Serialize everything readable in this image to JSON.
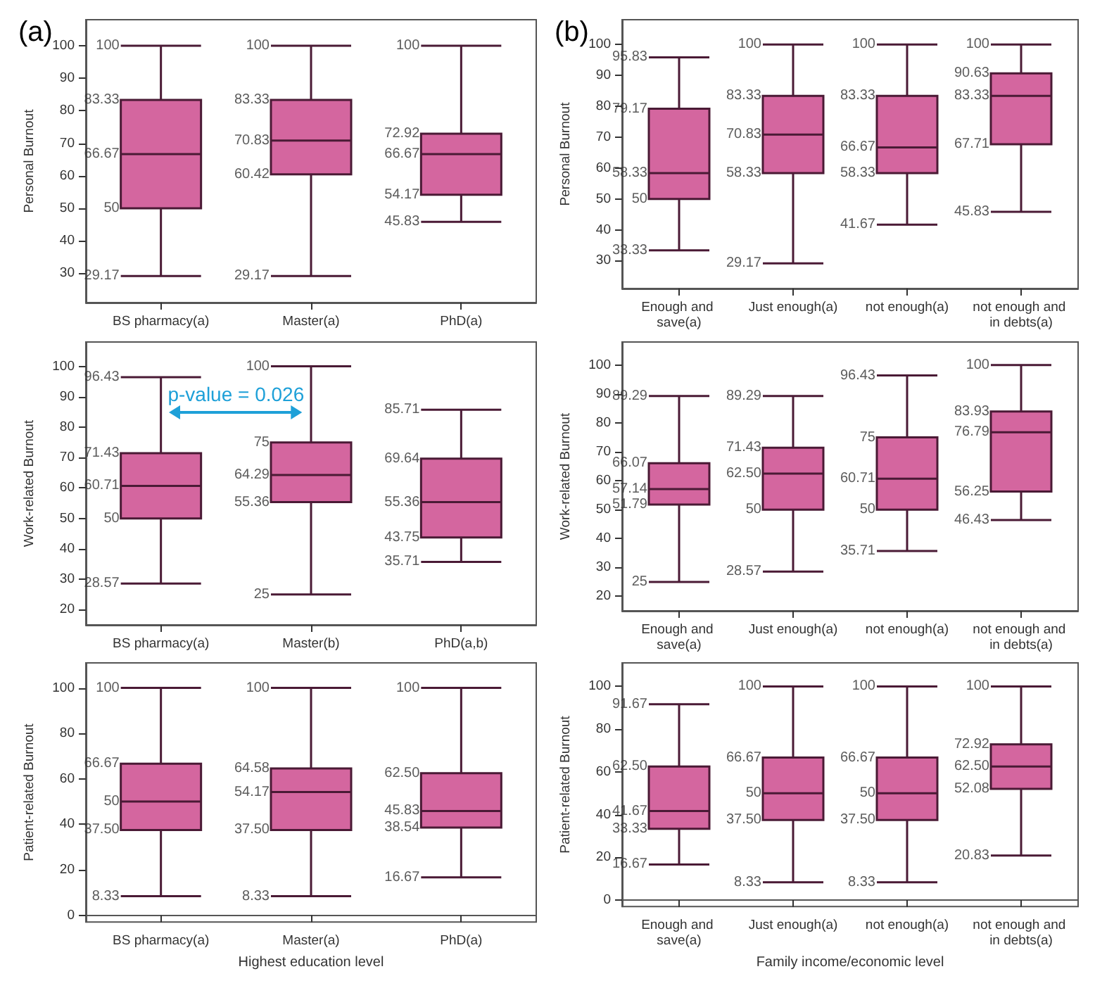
{
  "chart_data": [
    {
      "type": "box",
      "title": "(a)",
      "ylabel": "Personal Burnout",
      "categories": [
        "BS pharmacy(a)",
        "Master(a)",
        "PhD(a)"
      ],
      "color": "#d4669f",
      "ylim": [
        21,
        108
      ],
      "yticks": [
        30,
        40,
        50,
        60,
        70,
        80,
        90,
        100
      ],
      "boxes": [
        {
          "low": 29.17,
          "q1": 50,
          "median": 66.67,
          "q3": 83.33,
          "high": 100
        },
        {
          "low": 29.17,
          "q1": 60.42,
          "median": 70.83,
          "q3": 83.33,
          "high": 100
        },
        {
          "low": 45.83,
          "q1": 54.17,
          "median": 66.67,
          "q3": 72.92,
          "high": 100
        }
      ],
      "annotations": [
        {
          "text": "29.17",
          "x": "BS pharmacy(a)",
          "y": 29.17
        },
        {
          "text": "50",
          "x": "BS pharmacy(a)",
          "y": 50
        },
        {
          "text": "66.67",
          "x": "BS pharmacy(a)",
          "y": 66.67
        },
        {
          "text": "83.33",
          "x": "BS pharmacy(a)",
          "y": 83.33
        },
        {
          "text": "100",
          "x": "BS pharmacy(a)",
          "y": 100
        },
        {
          "text": "29.17",
          "x": "Master(a)",
          "y": 29.17
        },
        {
          "text": "60.42",
          "x": "Master(a)",
          "y": 60.42
        },
        {
          "text": "70.83",
          "x": "Master(a)",
          "y": 70.83
        },
        {
          "text": "83.33",
          "x": "Master(a)",
          "y": 83.33
        },
        {
          "text": "100",
          "x": "Master(a)",
          "y": 100
        },
        {
          "text": "45.83",
          "x": "PhD(a)",
          "y": 45.83
        },
        {
          "text": "54.17",
          "x": "PhD(a)",
          "y": 54.17
        },
        {
          "text": "66.67",
          "x": "PhD(a)",
          "y": 66.67
        },
        {
          "text": "72.92",
          "x": "PhD(a)",
          "y": 72.92
        },
        {
          "text": "100",
          "x": "PhD(a)",
          "y": 100
        }
      ]
    },
    {
      "type": "box",
      "title": "(b)",
      "ylabel": "Personal Burnout",
      "categories": [
        "Enough and save(a)",
        "Just enough(a)",
        "not enough(a)",
        "not enough and in debts(a)"
      ],
      "color": "#d4669f",
      "ylim": [
        21,
        108
      ],
      "yticks": [
        30,
        40,
        50,
        60,
        70,
        80,
        90,
        100
      ],
      "boxes": [
        {
          "low": 33.33,
          "q1": 50,
          "median": 58.33,
          "q3": 79.17,
          "high": 95.83
        },
        {
          "low": 29.17,
          "q1": 58.33,
          "median": 70.83,
          "q3": 83.33,
          "high": 100
        },
        {
          "low": 41.67,
          "q1": 58.33,
          "median": 66.67,
          "q3": 83.33,
          "high": 100
        },
        {
          "low": 45.83,
          "q1": 67.71,
          "median": 83.33,
          "q3": 90.63,
          "high": 100
        }
      ],
      "annotations": [
        {
          "text": "33.33",
          "x": "Enough and save(a)",
          "y": 33.33
        },
        {
          "text": "50",
          "x": "Enough and save(a)",
          "y": 50
        },
        {
          "text": "58.33",
          "x": "Enough and save(a)",
          "y": 58.33
        },
        {
          "text": "79.17",
          "x": "Enough and save(a)",
          "y": 79.17
        },
        {
          "text": "95.83",
          "x": "Enough and save(a)",
          "y": 95.83
        },
        {
          "text": "29.17",
          "x": "Just enough(a)",
          "y": 29.17
        },
        {
          "text": "58.33",
          "x": "Just enough(a)",
          "y": 58.33
        },
        {
          "text": "70.83",
          "x": "Just enough(a)",
          "y": 70.83
        },
        {
          "text": "83.33",
          "x": "Just enough(a)",
          "y": 83.33
        },
        {
          "text": "100",
          "x": "Just enough(a)",
          "y": 100
        },
        {
          "text": "41.67",
          "x": "not enough(a)",
          "y": 41.67
        },
        {
          "text": "58.33",
          "x": "not enough(a)",
          "y": 58.33
        },
        {
          "text": "66.67",
          "x": "not enough(a)",
          "y": 66.67
        },
        {
          "text": "83.33",
          "x": "not enough(a)",
          "y": 83.33
        },
        {
          "text": "100",
          "x": "not enough(a)",
          "y": 100
        },
        {
          "text": "45.83",
          "x": "not enough and in debts(a)",
          "y": 45.83
        },
        {
          "text": "67.71",
          "x": "not enough and in debts(a)",
          "y": 67.71
        },
        {
          "text": "83.33",
          "x": "not enough and in debts(a)",
          "y": 83.33
        },
        {
          "text": "90.63",
          "x": "not enough and in debts(a)",
          "y": 90.63
        },
        {
          "text": "100",
          "x": "not enough and in debts(a)",
          "y": 100
        }
      ]
    },
    {
      "type": "box",
      "ylabel": "Work-related Burnout",
      "categories": [
        "BS pharmacy(a)",
        "Master(b)",
        "PhD(a,b)"
      ],
      "color": "#d4669f",
      "ylim": [
        15,
        108
      ],
      "yticks": [
        20,
        30,
        40,
        50,
        60,
        70,
        80,
        90,
        100
      ],
      "boxes": [
        {
          "low": 28.57,
          "q1": 50,
          "median": 60.71,
          "q3": 71.43,
          "high": 96.43
        },
        {
          "low": 25,
          "q1": 55.36,
          "median": 64.29,
          "q3": 75,
          "high": 100
        },
        {
          "low": 35.71,
          "q1": 43.75,
          "median": 55.36,
          "q3": 69.64,
          "high": 85.71
        }
      ],
      "annotations": [
        "p-value = 0.026",
        {
          "text": "28.57",
          "x": "BS pharmacy(a)",
          "y": 28.57
        },
        {
          "text": "50",
          "x": "BS pharmacy(a)",
          "y": 50
        },
        {
          "text": "60.71",
          "x": "BS pharmacy(a)",
          "y": 60.71
        },
        {
          "text": "71.43",
          "x": "BS pharmacy(a)",
          "y": 71.43
        },
        {
          "text": "96.43",
          "x": "BS pharmacy(a)",
          "y": 96.43
        },
        {
          "text": "25",
          "x": "Master(b)",
          "y": 25
        },
        {
          "text": "55.36",
          "x": "Master(b)",
          "y": 55.36
        },
        {
          "text": "64.29",
          "x": "Master(b)",
          "y": 64.29
        },
        {
          "text": "75",
          "x": "Master(b)",
          "y": 75
        },
        {
          "text": "100",
          "x": "Master(b)",
          "y": 100
        },
        {
          "text": "35.71",
          "x": "PhD(a,b)",
          "y": 35.71
        },
        {
          "text": "43.75",
          "x": "PhD(a,b)",
          "y": 43.75
        },
        {
          "text": "55.36",
          "x": "PhD(a,b)",
          "y": 55.36
        },
        {
          "text": "69.64",
          "x": "PhD(a,b)",
          "y": 69.64
        },
        {
          "text": "85.71",
          "x": "PhD(a,b)",
          "y": 85.71
        }
      ]
    },
    {
      "type": "box",
      "ylabel": "Work-related Burnout",
      "categories": [
        "Enough and save(a)",
        "Just enough(a)",
        "not enough(a)",
        "not enough and in debts(a)"
      ],
      "color": "#d4669f",
      "ylim": [
        15,
        108
      ],
      "yticks": [
        20,
        30,
        40,
        50,
        60,
        70,
        80,
        90,
        100
      ],
      "boxes": [
        {
          "low": 25,
          "q1": 51.79,
          "median": 57.14,
          "q3": 66.07,
          "high": 89.29
        },
        {
          "low": 28.57,
          "q1": 50,
          "median": 62.5,
          "q3": 71.43,
          "high": 89.29
        },
        {
          "low": 35.71,
          "q1": 50,
          "median": 60.71,
          "q3": 75,
          "high": 96.43
        },
        {
          "low": 46.43,
          "q1": 56.25,
          "median": 76.79,
          "q3": 83.93,
          "high": 100
        }
      ],
      "annotations": [
        {
          "text": "25",
          "x": "Enough and save(a)",
          "y": 25
        },
        {
          "text": "51.79",
          "x": "Enough and save(a)",
          "y": 51.79
        },
        {
          "text": "57.14",
          "x": "Enough and save(a)",
          "y": 57.14
        },
        {
          "text": "66.07",
          "x": "Enough and save(a)",
          "y": 66.07
        },
        {
          "text": "89.29",
          "x": "Enough and save(a)",
          "y": 89.29
        },
        {
          "text": "28.57",
          "x": "Just enough(a)",
          "y": 28.57
        },
        {
          "text": "50",
          "x": "Just enough(a)",
          "y": 50
        },
        {
          "text": "62.50",
          "x": "Just enough(a)",
          "y": 62.5
        },
        {
          "text": "71.43",
          "x": "Just enough(a)",
          "y": 71.43
        },
        {
          "text": "89.29",
          "x": "Just enough(a)",
          "y": 89.29
        },
        {
          "text": "35.71",
          "x": "not enough(a)",
          "y": 35.71
        },
        {
          "text": "50",
          "x": "not enough(a)",
          "y": 50
        },
        {
          "text": "60.71",
          "x": "not enough(a)",
          "y": 60.71
        },
        {
          "text": "75",
          "x": "not enough(a)",
          "y": 75
        },
        {
          "text": "96.43",
          "x": "not enough(a)",
          "y": 96.43
        },
        {
          "text": "46.43",
          "x": "not enough and in debts(a)",
          "y": 46.43
        },
        {
          "text": "56.25",
          "x": "not enough and in debts(a)",
          "y": 56.25
        },
        {
          "text": "76.79",
          "x": "not enough and in debts(a)",
          "y": 76.79
        },
        {
          "text": "83.93",
          "x": "not enough and in debts(a)",
          "y": 83.93
        },
        {
          "text": "100",
          "x": "not enough and in debts(a)",
          "y": 100
        }
      ]
    },
    {
      "type": "box",
      "ylabel": "Patient-related Burnout",
      "xlabel": "Highest education level",
      "categories": [
        "BS pharmacy(a)",
        "Master(a)",
        "PhD(a)"
      ],
      "color": "#d4669f",
      "ylim": [
        -3,
        111
      ],
      "yticks": [
        0,
        20,
        40,
        60,
        80,
        100
      ],
      "boxes": [
        {
          "low": 8.33,
          "q1": 37.5,
          "median": 50,
          "q3": 66.67,
          "high": 100
        },
        {
          "low": 8.33,
          "q1": 37.5,
          "median": 54.17,
          "q3": 64.58,
          "high": 100
        },
        {
          "low": 16.67,
          "q1": 38.54,
          "median": 45.83,
          "q3": 62.5,
          "high": 100
        }
      ],
      "annotations": [
        {
          "text": "8.33",
          "x": "BS pharmacy(a)",
          "y": 8.33
        },
        {
          "text": "37.50",
          "x": "BS pharmacy(a)",
          "y": 37.5
        },
        {
          "text": "50",
          "x": "BS pharmacy(a)",
          "y": 50
        },
        {
          "text": "66.67",
          "x": "BS pharmacy(a)",
          "y": 66.67
        },
        {
          "text": "100",
          "x": "BS pharmacy(a)",
          "y": 100
        },
        {
          "text": "8.33",
          "x": "Master(a)",
          "y": 8.33
        },
        {
          "text": "37.50",
          "x": "Master(a)",
          "y": 37.5
        },
        {
          "text": "54.17",
          "x": "Master(a)",
          "y": 54.17
        },
        {
          "text": "64.58",
          "x": "Master(a)",
          "y": 64.58
        },
        {
          "text": "100",
          "x": "Master(a)",
          "y": 100
        },
        {
          "text": "16.67",
          "x": "PhD(a)",
          "y": 16.67
        },
        {
          "text": "38.54",
          "x": "PhD(a)",
          "y": 38.54
        },
        {
          "text": "45.83",
          "x": "PhD(a)",
          "y": 45.83
        },
        {
          "text": "62.50",
          "x": "PhD(a)",
          "y": 62.5
        },
        {
          "text": "100",
          "x": "PhD(a)",
          "y": 100
        }
      ]
    },
    {
      "type": "box",
      "ylabel": "Patient-related Burnout",
      "xlabel": "Family income/economic level",
      "categories": [
        "Enough and save(a)",
        "Just enough(a)",
        "not enough(a)",
        "not enough and in debts(a)"
      ],
      "color": "#d4669f",
      "ylim": [
        -3,
        111
      ],
      "yticks": [
        0,
        20,
        40,
        60,
        80,
        100
      ],
      "boxes": [
        {
          "low": 16.67,
          "q1": 33.33,
          "median": 41.67,
          "q3": 62.5,
          "high": 91.67
        },
        {
          "low": 8.33,
          "q1": 37.5,
          "median": 50,
          "q3": 66.67,
          "high": 100
        },
        {
          "low": 8.33,
          "q1": 37.5,
          "median": 50,
          "q3": 66.67,
          "high": 100
        },
        {
          "low": 20.83,
          "q1": 52.08,
          "median": 62.5,
          "q3": 72.92,
          "high": 100
        }
      ],
      "annotations": [
        {
          "text": "16.67",
          "x": "Enough and save(a)",
          "y": 16.67
        },
        {
          "text": "33.33",
          "x": "Enough and save(a)",
          "y": 33.33
        },
        {
          "text": "41.67",
          "x": "Enough and save(a)",
          "y": 41.67
        },
        {
          "text": "62.50",
          "x": "Enough and save(a)",
          "y": 62.5
        },
        {
          "text": "91.67",
          "x": "Enough and save(a)",
          "y": 91.67
        },
        {
          "text": "8.33",
          "x": "Just enough(a)",
          "y": 8.33
        },
        {
          "text": "37.50",
          "x": "Just enough(a)",
          "y": 37.5
        },
        {
          "text": "50",
          "x": "Just enough(a)",
          "y": 50
        },
        {
          "text": "66.67",
          "x": "Just enough(a)",
          "y": 66.67
        },
        {
          "text": "100",
          "x": "Just enough(a)",
          "y": 100
        },
        {
          "text": "8.33",
          "x": "not enough(a)",
          "y": 8.33
        },
        {
          "text": "37.50",
          "x": "not enough(a)",
          "y": 37.5
        },
        {
          "text": "50",
          "x": "not enough(a)",
          "y": 50
        },
        {
          "text": "66.67",
          "x": "not enough(a)",
          "y": 66.67
        },
        {
          "text": "100",
          "x": "not enough(a)",
          "y": 100
        },
        {
          "text": "20.83",
          "x": "not enough and in debts(a)",
          "y": 20.83
        },
        {
          "text": "52.08",
          "x": "not enough and in debts(a)",
          "y": 52.08
        },
        {
          "text": "62.50",
          "x": "not enough and in debts(a)",
          "y": 62.5
        },
        {
          "text": "72.92",
          "x": "not enough and in debts(a)",
          "y": 72.92
        },
        {
          "text": "100",
          "x": "not enough and in debts(a)",
          "y": 100
        }
      ]
    }
  ]
}
